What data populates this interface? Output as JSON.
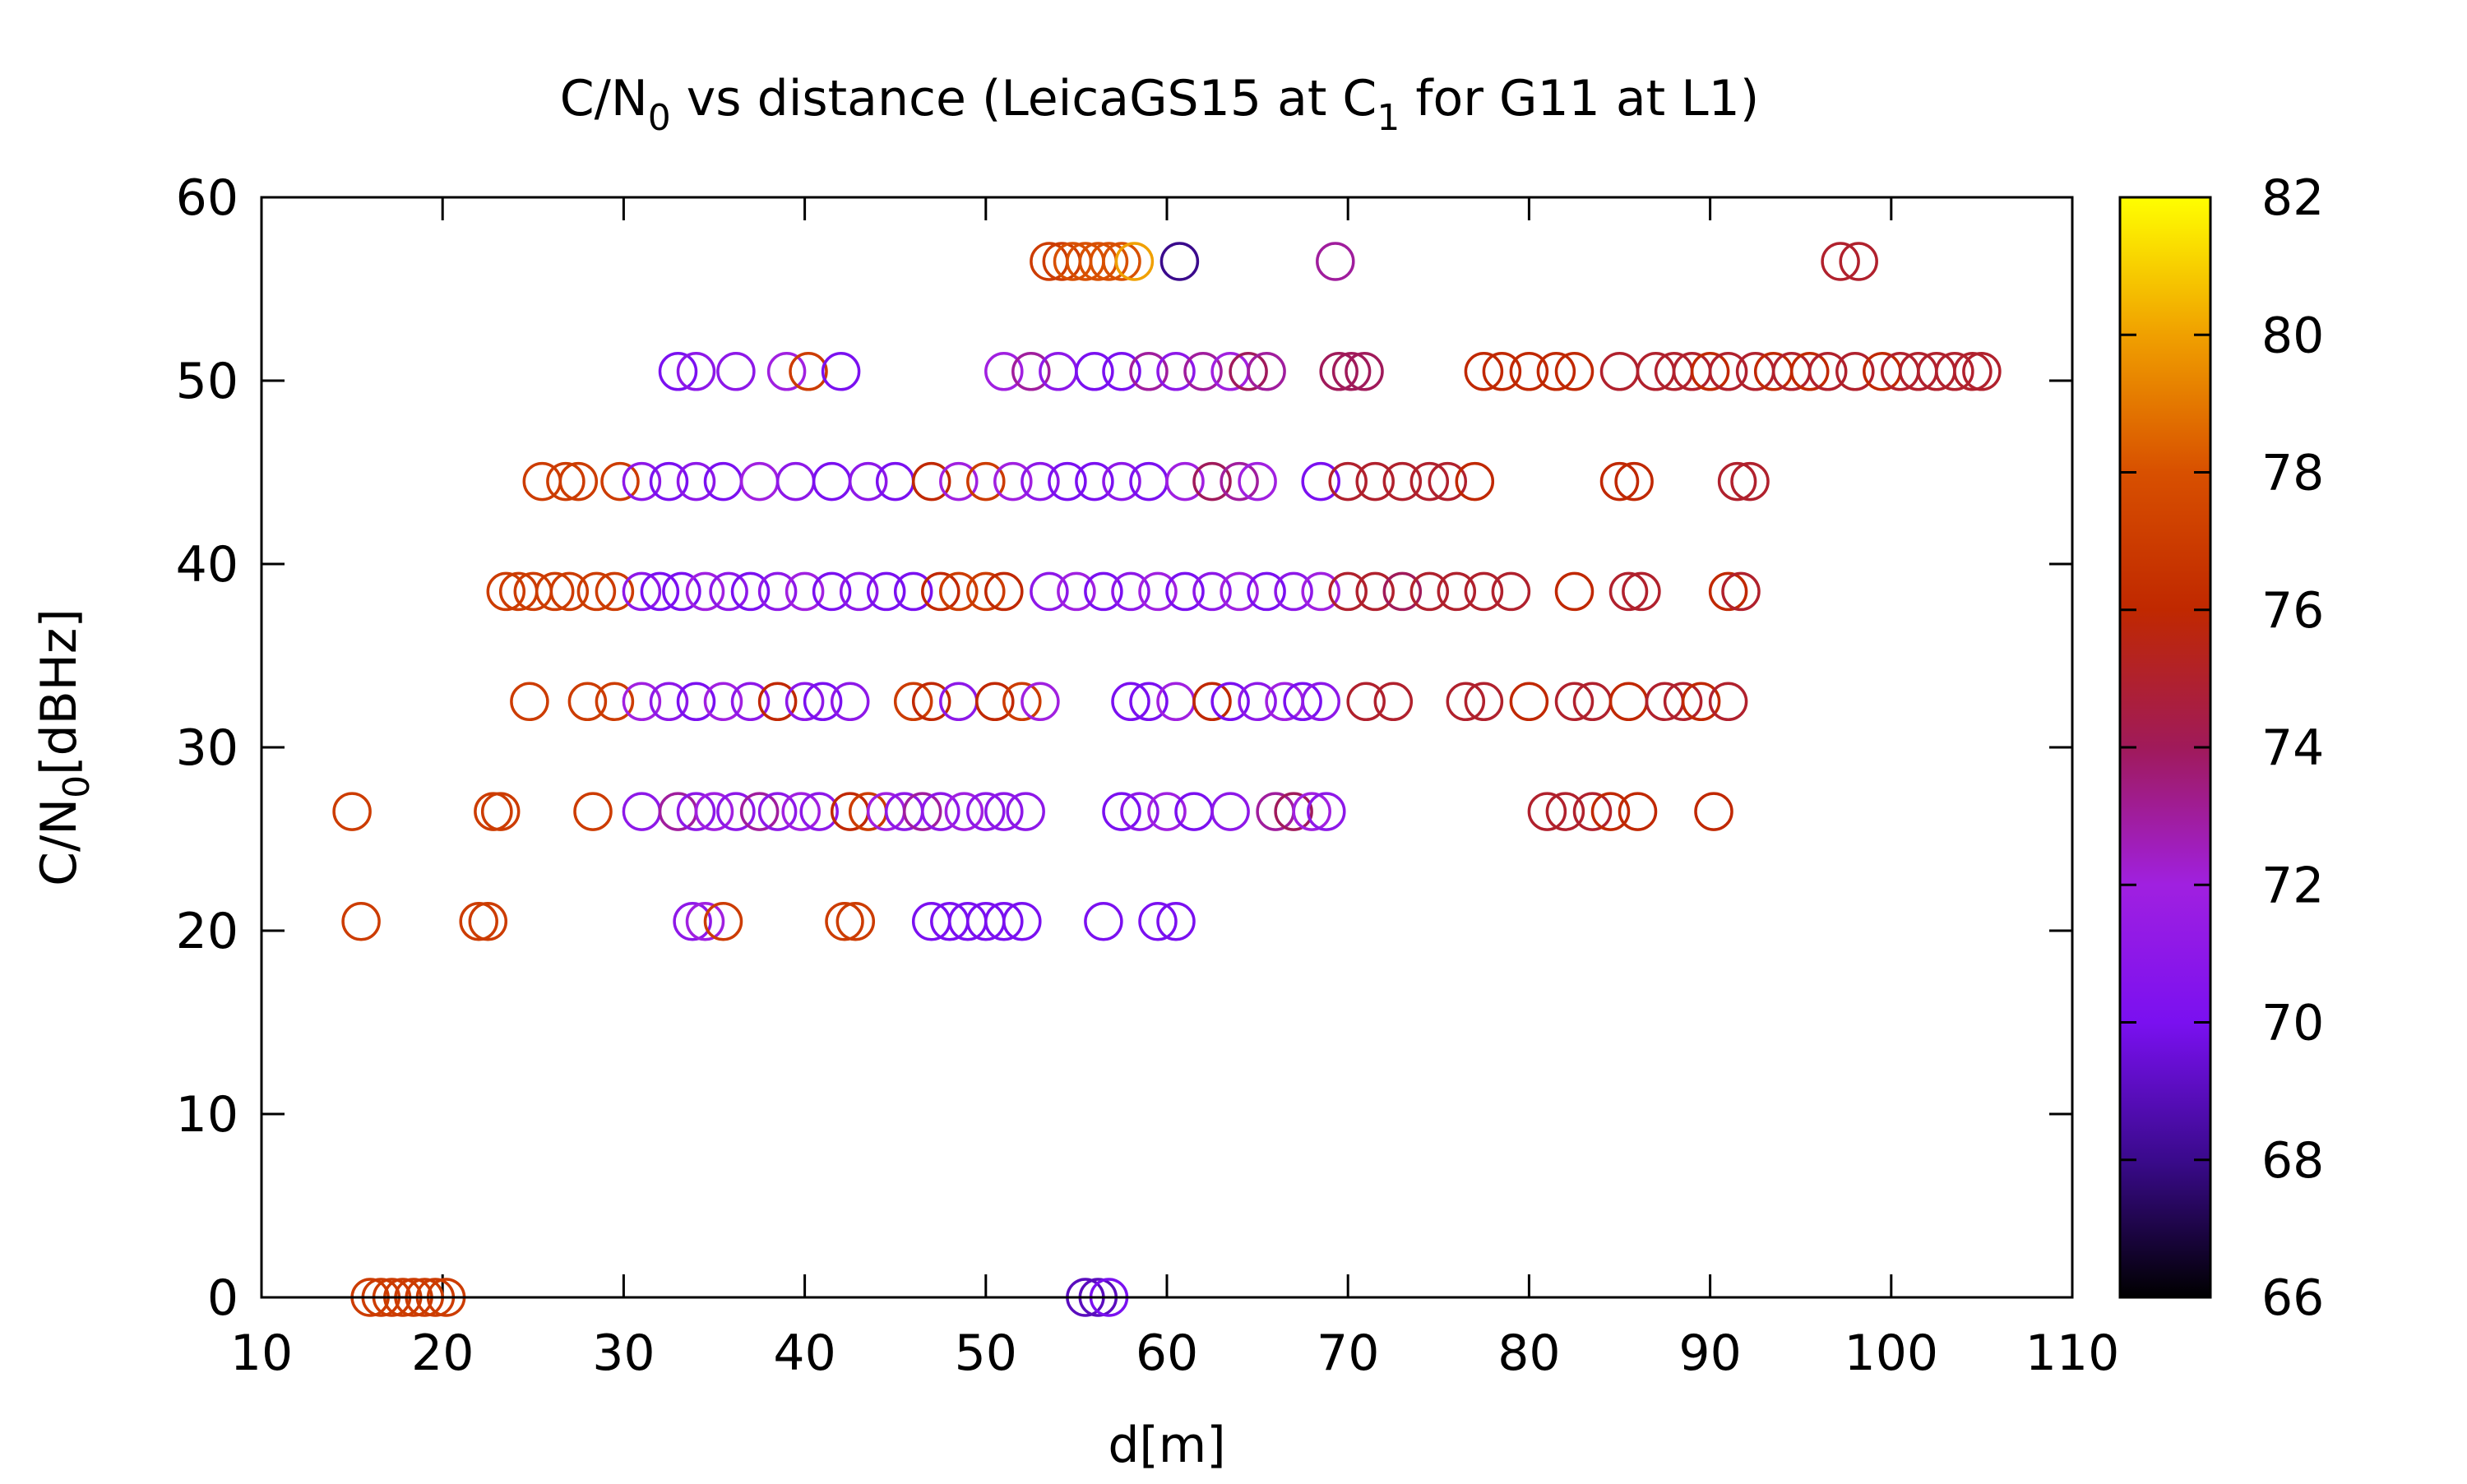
{
  "chart_data": {
    "type": "scatter",
    "title": "C/N0 vs distance (LeicaGS15 at C1 for G11 at L1)",
    "title_parts": {
      "pre": "C/N",
      "sub1": "0",
      "mid": " vs distance (LeicaGS15 at C",
      "sub2": "1",
      "post": " for G11 at L1)"
    },
    "xlabel": "d[m]",
    "ylabel": "C/N0[dBHz]",
    "ylabel_parts": {
      "pre": "C/N",
      "sub": "0",
      "post": "[dBHz]"
    },
    "xlim": [
      10,
      110
    ],
    "ylim": [
      0,
      60
    ],
    "x_ticks": [
      10,
      20,
      30,
      40,
      50,
      60,
      70,
      80,
      90,
      100,
      110
    ],
    "y_ticks": [
      0,
      10,
      20,
      30,
      40,
      50,
      60
    ],
    "colorbar": {
      "range": [
        66,
        82
      ],
      "ticks": [
        66,
        68,
        70,
        72,
        74,
        76,
        78,
        80,
        82
      ],
      "palette": [
        "#000000",
        "#3a0a8c",
        "#7a10f0",
        "#a020e0",
        "#a01a5a",
        "#c02800",
        "#d85000",
        "#f0a000",
        "#ffff00"
      ]
    },
    "marker": "open-circle",
    "points": [
      [
        15.0,
        26.5,
        77
      ],
      [
        15.5,
        20.5,
        77
      ],
      [
        22.0,
        20.5,
        77
      ],
      [
        22.5,
        20.5,
        77
      ],
      [
        22.8,
        26.5,
        77
      ],
      [
        23.2,
        26.5,
        77
      ],
      [
        28.3,
        26.5,
        77
      ],
      [
        16.0,
        0,
        77
      ],
      [
        16.6,
        0,
        77
      ],
      [
        17.2,
        0,
        77
      ],
      [
        17.8,
        0,
        77
      ],
      [
        18.4,
        0,
        77
      ],
      [
        19.0,
        0,
        77
      ],
      [
        19.6,
        0,
        77
      ],
      [
        20.2,
        0,
        77
      ],
      [
        24.8,
        32.5,
        77
      ],
      [
        28.0,
        32.5,
        77
      ],
      [
        29.5,
        32.5,
        77
      ],
      [
        23.5,
        38.5,
        77
      ],
      [
        24.2,
        38.5,
        77
      ],
      [
        25.0,
        38.5,
        77
      ],
      [
        26.2,
        38.5,
        77
      ],
      [
        27.0,
        38.5,
        77
      ],
      [
        28.5,
        38.5,
        77
      ],
      [
        29.5,
        38.5,
        77
      ],
      [
        25.5,
        44.5,
        77
      ],
      [
        26.8,
        44.5,
        77
      ],
      [
        27.5,
        44.5,
        77
      ],
      [
        29.8,
        44.5,
        77
      ],
      [
        31.0,
        26.5,
        71
      ],
      [
        33.0,
        26.5,
        73
      ],
      [
        34.0,
        26.5,
        71
      ],
      [
        35.0,
        26.5,
        72
      ],
      [
        36.2,
        26.5,
        71
      ],
      [
        37.5,
        26.5,
        73
      ],
      [
        38.5,
        26.5,
        71
      ],
      [
        39.8,
        26.5,
        72
      ],
      [
        40.8,
        26.5,
        71
      ],
      [
        42.5,
        26.5,
        76
      ],
      [
        43.5,
        26.5,
        77
      ],
      [
        44.5,
        26.5,
        72
      ],
      [
        45.5,
        26.5,
        71
      ],
      [
        46.5,
        26.5,
        73
      ],
      [
        47.5,
        26.5,
        71
      ],
      [
        48.8,
        26.5,
        72
      ],
      [
        50.0,
        26.5,
        71
      ],
      [
        51.0,
        26.5,
        71
      ],
      [
        52.2,
        26.5,
        71
      ],
      [
        33.8,
        20.5,
        71
      ],
      [
        34.5,
        20.5,
        72
      ],
      [
        35.5,
        20.5,
        77
      ],
      [
        42.2,
        20.5,
        77
      ],
      [
        42.8,
        20.5,
        77
      ],
      [
        47.0,
        20.5,
        70
      ],
      [
        48.0,
        20.5,
        70
      ],
      [
        49.0,
        20.5,
        70
      ],
      [
        50.0,
        20.5,
        70
      ],
      [
        51.0,
        20.5,
        70
      ],
      [
        52.0,
        20.5,
        70
      ],
      [
        56.5,
        20.5,
        70
      ],
      [
        59.5,
        20.5,
        70
      ],
      [
        60.5,
        20.5,
        70
      ],
      [
        31.0,
        32.5,
        72
      ],
      [
        32.5,
        32.5,
        71
      ],
      [
        34.0,
        32.5,
        70
      ],
      [
        35.5,
        32.5,
        72
      ],
      [
        37.0,
        32.5,
        71
      ],
      [
        38.5,
        32.5,
        76
      ],
      [
        40.0,
        32.5,
        71
      ],
      [
        41.0,
        32.5,
        70
      ],
      [
        42.5,
        32.5,
        71
      ],
      [
        46.0,
        32.5,
        77
      ],
      [
        47.0,
        32.5,
        76
      ],
      [
        48.5,
        32.5,
        71
      ],
      [
        50.5,
        32.5,
        76
      ],
      [
        52.0,
        32.5,
        77
      ],
      [
        53.0,
        32.5,
        72
      ],
      [
        58.0,
        32.5,
        70
      ],
      [
        59.0,
        32.5,
        70
      ],
      [
        60.5,
        32.5,
        72
      ],
      [
        62.5,
        32.5,
        76
      ],
      [
        63.5,
        32.5,
        70
      ],
      [
        65.0,
        32.5,
        71
      ],
      [
        66.5,
        32.5,
        72
      ],
      [
        67.5,
        32.5,
        70
      ],
      [
        68.5,
        32.5,
        71
      ],
      [
        71.0,
        32.5,
        75
      ],
      [
        72.5,
        32.5,
        75
      ],
      [
        76.5,
        32.5,
        75
      ],
      [
        77.5,
        32.5,
        75
      ],
      [
        80.0,
        32.5,
        76
      ],
      [
        82.5,
        32.5,
        75
      ],
      [
        83.5,
        32.5,
        75
      ],
      [
        85.5,
        32.5,
        76
      ],
      [
        87.5,
        32.5,
        75
      ],
      [
        88.5,
        32.5,
        75
      ],
      [
        89.5,
        32.5,
        76
      ],
      [
        91.0,
        32.5,
        75
      ],
      [
        57.5,
        26.5,
        70
      ],
      [
        58.5,
        26.5,
        71
      ],
      [
        60.0,
        26.5,
        72
      ],
      [
        61.5,
        26.5,
        70
      ],
      [
        63.5,
        26.5,
        71
      ],
      [
        66.0,
        26.5,
        73
      ],
      [
        67.0,
        26.5,
        74
      ],
      [
        68.0,
        26.5,
        72
      ],
      [
        68.8,
        26.5,
        71
      ],
      [
        81.0,
        26.5,
        75
      ],
      [
        82.0,
        26.5,
        75
      ],
      [
        83.5,
        26.5,
        75
      ],
      [
        84.5,
        26.5,
        76
      ],
      [
        86.0,
        26.5,
        76
      ],
      [
        90.2,
        26.5,
        76
      ],
      [
        31.0,
        38.5,
        71
      ],
      [
        32.0,
        38.5,
        70
      ],
      [
        33.2,
        38.5,
        70
      ],
      [
        34.5,
        38.5,
        72
      ],
      [
        35.8,
        38.5,
        71
      ],
      [
        37.0,
        38.5,
        70
      ],
      [
        38.5,
        38.5,
        71
      ],
      [
        40.0,
        38.5,
        72
      ],
      [
        41.5,
        38.5,
        70
      ],
      [
        43.0,
        38.5,
        71
      ],
      [
        44.5,
        38.5,
        70
      ],
      [
        46.0,
        38.5,
        70
      ],
      [
        47.5,
        38.5,
        76
      ],
      [
        48.5,
        38.5,
        77
      ],
      [
        50.0,
        38.5,
        77
      ],
      [
        51.0,
        38.5,
        76
      ],
      [
        53.5,
        38.5,
        71
      ],
      [
        55.0,
        38.5,
        72
      ],
      [
        56.5,
        38.5,
        70
      ],
      [
        58.0,
        38.5,
        71
      ],
      [
        59.5,
        38.5,
        72
      ],
      [
        61.0,
        38.5,
        70
      ],
      [
        62.5,
        38.5,
        71
      ],
      [
        64.0,
        38.5,
        72
      ],
      [
        65.5,
        38.5,
        70
      ],
      [
        67.0,
        38.5,
        71
      ],
      [
        68.5,
        38.5,
        72
      ],
      [
        70.0,
        38.5,
        75
      ],
      [
        71.5,
        38.5,
        75
      ],
      [
        73.0,
        38.5,
        74
      ],
      [
        74.5,
        38.5,
        75
      ],
      [
        76.0,
        38.5,
        75
      ],
      [
        77.5,
        38.5,
        75
      ],
      [
        79.0,
        38.5,
        75
      ],
      [
        82.5,
        38.5,
        76
      ],
      [
        85.5,
        38.5,
        75
      ],
      [
        86.2,
        38.5,
        75
      ],
      [
        91.0,
        38.5,
        76
      ],
      [
        91.7,
        38.5,
        75
      ],
      [
        31.0,
        44.5,
        71
      ],
      [
        32.5,
        44.5,
        70
      ],
      [
        34.0,
        44.5,
        71
      ],
      [
        35.5,
        44.5,
        70
      ],
      [
        37.5,
        44.5,
        72
      ],
      [
        39.5,
        44.5,
        71
      ],
      [
        41.5,
        44.5,
        70
      ],
      [
        43.5,
        44.5,
        71
      ],
      [
        45.0,
        44.5,
        70
      ],
      [
        47.0,
        44.5,
        76
      ],
      [
        48.5,
        44.5,
        72
      ],
      [
        50.0,
        44.5,
        77
      ],
      [
        51.5,
        44.5,
        72
      ],
      [
        53.0,
        44.5,
        71
      ],
      [
        54.5,
        44.5,
        70
      ],
      [
        56.0,
        44.5,
        70
      ],
      [
        57.5,
        44.5,
        71
      ],
      [
        59.0,
        44.5,
        70
      ],
      [
        61.0,
        44.5,
        72
      ],
      [
        62.5,
        44.5,
        74
      ],
      [
        64.0,
        44.5,
        73
      ],
      [
        65.0,
        44.5,
        72
      ],
      [
        68.5,
        44.5,
        70
      ],
      [
        70.0,
        44.5,
        75
      ],
      [
        71.5,
        44.5,
        75
      ],
      [
        73.0,
        44.5,
        75
      ],
      [
        74.5,
        44.5,
        75
      ],
      [
        75.5,
        44.5,
        75
      ],
      [
        77.0,
        44.5,
        76
      ],
      [
        85.0,
        44.5,
        76
      ],
      [
        85.8,
        44.5,
        76
      ],
      [
        91.5,
        44.5,
        75
      ],
      [
        92.2,
        44.5,
        75
      ],
      [
        33.0,
        50.5,
        70
      ],
      [
        34.0,
        50.5,
        71
      ],
      [
        36.2,
        50.5,
        71
      ],
      [
        39.0,
        50.5,
        72
      ],
      [
        40.2,
        50.5,
        77
      ],
      [
        42.0,
        50.5,
        70
      ],
      [
        51.0,
        50.5,
        72
      ],
      [
        52.5,
        50.5,
        73
      ],
      [
        54.0,
        50.5,
        71
      ],
      [
        56.0,
        50.5,
        70
      ],
      [
        57.5,
        50.5,
        70
      ],
      [
        59.0,
        50.5,
        73
      ],
      [
        60.5,
        50.5,
        71
      ],
      [
        62.0,
        50.5,
        73
      ],
      [
        63.5,
        50.5,
        72
      ],
      [
        64.5,
        50.5,
        74
      ],
      [
        65.5,
        50.5,
        73
      ],
      [
        69.5,
        50.5,
        74
      ],
      [
        70.2,
        50.5,
        74
      ],
      [
        70.9,
        50.5,
        74
      ],
      [
        77.5,
        50.5,
        76
      ],
      [
        78.5,
        50.5,
        76
      ],
      [
        80.0,
        50.5,
        76
      ],
      [
        81.5,
        50.5,
        76
      ],
      [
        82.5,
        50.5,
        76
      ],
      [
        85.0,
        50.5,
        75
      ],
      [
        87.0,
        50.5,
        75
      ],
      [
        88.0,
        50.5,
        75
      ],
      [
        89.0,
        50.5,
        75
      ],
      [
        90.0,
        50.5,
        76
      ],
      [
        91.0,
        50.5,
        75
      ],
      [
        92.5,
        50.5,
        75
      ],
      [
        93.5,
        50.5,
        76
      ],
      [
        94.5,
        50.5,
        75
      ],
      [
        95.5,
        50.5,
        76
      ],
      [
        96.5,
        50.5,
        75
      ],
      [
        98.0,
        50.5,
        75
      ],
      [
        99.5,
        50.5,
        76
      ],
      [
        100.5,
        50.5,
        75
      ],
      [
        101.5,
        50.5,
        75
      ],
      [
        102.5,
        50.5,
        75
      ],
      [
        103.5,
        50.5,
        75
      ],
      [
        104.5,
        50.5,
        75
      ],
      [
        105.0,
        50.5,
        75
      ],
      [
        53.5,
        56.5,
        77
      ],
      [
        54.2,
        56.5,
        77
      ],
      [
        54.8,
        56.5,
        78
      ],
      [
        55.5,
        56.5,
        78
      ],
      [
        56.2,
        56.5,
        78
      ],
      [
        56.8,
        56.5,
        78
      ],
      [
        57.5,
        56.5,
        78
      ],
      [
        58.2,
        56.5,
        80
      ],
      [
        60.7,
        56.5,
        68
      ],
      [
        69.3,
        56.5,
        73
      ],
      [
        97.2,
        56.5,
        75
      ],
      [
        98.2,
        56.5,
        75
      ],
      [
        55.5,
        0,
        69
      ],
      [
        56.2,
        0,
        69
      ],
      [
        56.8,
        0,
        70
      ]
    ]
  }
}
